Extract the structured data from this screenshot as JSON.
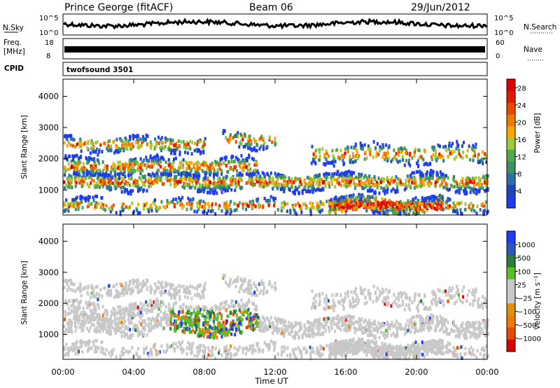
{
  "header": {
    "station": "Prince George (fitACF)",
    "beam": "Beam 06",
    "date": "29/Jun/2012"
  },
  "panels": {
    "nsky_label": "N.Sky",
    "nsky_top": "10^5",
    "nsky_bottom": "10^0",
    "nsearch_label": "N.Search",
    "nsearch_top": "10^5",
    "nsearch_bottom": "10^0",
    "freq_label_1": "Freq.",
    "freq_label_2": "[MHz]",
    "freq_top": "18",
    "freq_bottom": "8",
    "nave_label": "Nave",
    "nave_top": "60",
    "nave_bottom": "0",
    "cpid_label": "CPID",
    "cpid_value": "twofsound 3501"
  },
  "colors": {
    "power_scale": [
      "#1f3cf5",
      "#1f46b8",
      "#2e6fa8",
      "#3f8f63",
      "#56a84e",
      "#9ccc3b",
      "#f5a800",
      "#ef7a00",
      "#e84a00",
      "#e11d00",
      "#dd0000"
    ],
    "velocity_scale": [
      "#1f3cf5",
      "#2e55b8",
      "#2d7a3a",
      "#5cbf2a",
      "#c8c8c8",
      "#c8c8c8",
      "#e0900a",
      "#ef7a00",
      "#e84a00",
      "#dd0000"
    ]
  },
  "chart_data": [
    {
      "type": "heatmap",
      "parameter": "power",
      "xlabel": "Time UT",
      "ylabel": "Slant Range [km]",
      "x_ticks": [
        "00:00",
        "04:00",
        "08:00",
        "12:00",
        "16:00",
        "20:00",
        "00:00"
      ],
      "y_ticks": [
        1000,
        2000,
        3000,
        4000
      ],
      "ylim": [
        200,
        4550
      ],
      "colorbar": {
        "label": "Power [dB]",
        "ticks": [
          4,
          8,
          12,
          16,
          20,
          24,
          28
        ],
        "range": [
          0,
          30
        ]
      }
    },
    {
      "type": "heatmap",
      "parameter": "velocity",
      "xlabel": "Time UT",
      "ylabel": "Slant Range [km]",
      "x_ticks": [
        "00:00",
        "04:00",
        "08:00",
        "12:00",
        "16:00",
        "20:00",
        "00:00"
      ],
      "y_ticks": [
        1000,
        2000,
        3000,
        4000
      ],
      "ylim": [
        200,
        4550
      ],
      "colorbar": {
        "label": "Velocity [m s⁻¹]",
        "ticks": [
          "1000",
          "500",
          "100",
          "25",
          "−25",
          "−100",
          "−500",
          "−1000"
        ]
      }
    }
  ]
}
